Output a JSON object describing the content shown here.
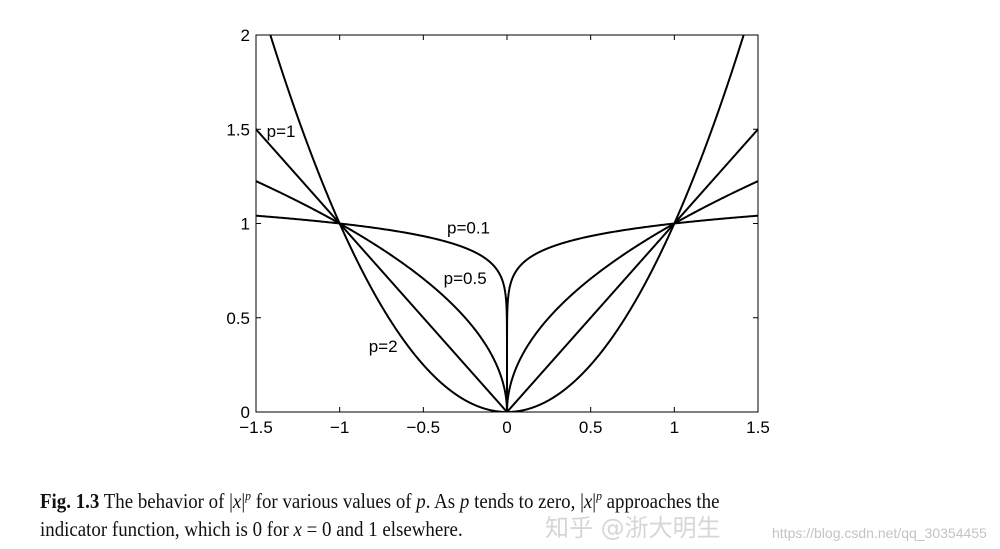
{
  "chart_data": {
    "type": "line",
    "title": "",
    "xlabel": "",
    "ylabel": "",
    "xlim": [
      -1.5,
      1.5
    ],
    "ylim": [
      0,
      2
    ],
    "grid": false,
    "xticks": [
      "−1.5",
      "−1",
      "−0.5",
      "0",
      "0.5",
      "1",
      "1.5"
    ],
    "xtick_values": [
      -1.5,
      -1,
      -0.5,
      0,
      0.5,
      1,
      1.5
    ],
    "yticks": [
      "0",
      "0.5",
      "1",
      "1.5",
      "2"
    ],
    "ytick_values": [
      0,
      0.5,
      1,
      1.5,
      2
    ],
    "function": "|x|^p",
    "series": [
      {
        "name": "p=0.1",
        "p": 0.1,
        "label": "p=0.1",
        "label_at": [
          -0.23,
          0.98
        ]
      },
      {
        "name": "p=0.5",
        "p": 0.5,
        "label": "p=0.5",
        "label_at": [
          -0.25,
          0.71
        ]
      },
      {
        "name": "p=1",
        "p": 1,
        "label": "p=1",
        "label_at": [
          -1.35,
          1.49
        ]
      },
      {
        "name": "p=2",
        "p": 2,
        "label": "p=2",
        "label_at": [
          -0.74,
          0.35
        ]
      }
    ],
    "line_color": "#000000"
  },
  "caption": {
    "label": "Fig. 1.3",
    "t1": " The behavior of |",
    "x": "x",
    "t2": "|",
    "p": "p",
    "t3": " for various values of ",
    "t4": ". As ",
    "t5": " tends to zero, |",
    "t6": " approaches the",
    "line2a": "indicator function, which is 0 for ",
    "line2b": " = 0 and 1 elsewhere."
  },
  "watermark": {
    "brand": "知乎 @浙大明生",
    "url": "https://blog.csdn.net/qq_30354455"
  }
}
